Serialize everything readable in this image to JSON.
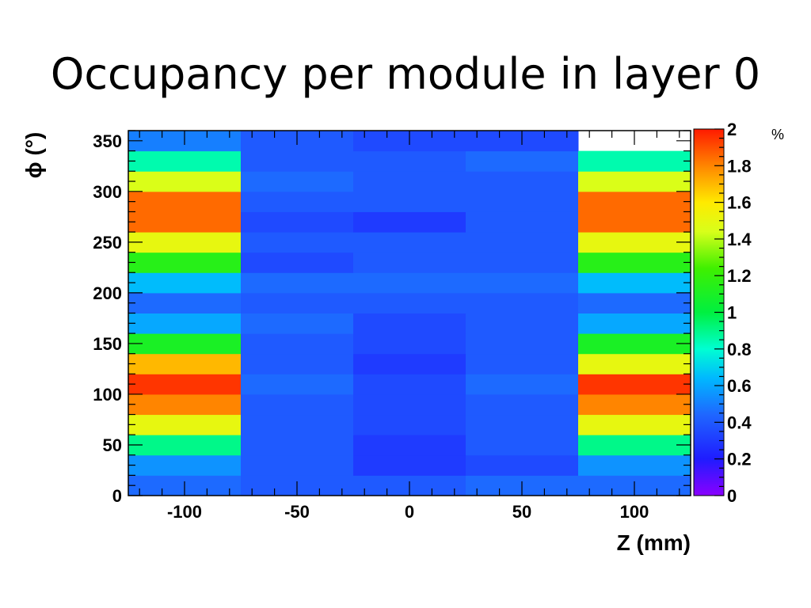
{
  "slide": {
    "title": "Occupancy per module in layer 0"
  },
  "chart_data": {
    "type": "heatmap",
    "title": "Occupancy per module in layer 0",
    "xlabel": "Z (mm)",
    "ylabel": "ϕ (°)",
    "xlim": [
      -125,
      125
    ],
    "ylim": [
      0,
      360
    ],
    "x_edges": [
      -125,
      -75,
      -25,
      25,
      75,
      125
    ],
    "y_edges": [
      0,
      20,
      40,
      60,
      80,
      100,
      120,
      140,
      160,
      180,
      200,
      220,
      240,
      260,
      280,
      300,
      320,
      340,
      360
    ],
    "x_ticks": [
      -100,
      -50,
      0,
      50,
      100
    ],
    "y_ticks": [
      0,
      50,
      100,
      150,
      200,
      250,
      300,
      350
    ],
    "colorbar": {
      "min": 0,
      "max": 2,
      "unit": "%",
      "ticks": [
        "0",
        "0.2",
        "0.4",
        "0.6",
        "0.8",
        "1",
        "1.2",
        "1.4",
        "1.6",
        "1.8",
        "2"
      ]
    },
    "values": [
      [
        0.45,
        0.4,
        0.4,
        0.45,
        0.45
      ],
      [
        0.55,
        0.4,
        0.3,
        0.35,
        0.55
      ],
      [
        0.9,
        0.4,
        0.3,
        0.4,
        0.9
      ],
      [
        1.5,
        0.4,
        0.35,
        0.4,
        1.5
      ],
      [
        1.8,
        0.4,
        0.35,
        0.4,
        1.8
      ],
      [
        1.95,
        0.45,
        0.35,
        0.45,
        1.95
      ],
      [
        1.7,
        0.4,
        0.3,
        0.4,
        1.5
      ],
      [
        1.1,
        0.4,
        0.35,
        0.4,
        1.1
      ],
      [
        0.6,
        0.45,
        0.35,
        0.4,
        0.6
      ],
      [
        0.45,
        0.4,
        0.4,
        0.4,
        0.45
      ],
      [
        0.65,
        0.45,
        0.45,
        0.45,
        0.65
      ],
      [
        1.15,
        0.35,
        0.4,
        0.4,
        1.15
      ],
      [
        1.5,
        0.4,
        0.4,
        0.4,
        1.5
      ],
      [
        1.85,
        0.35,
        0.3,
        0.4,
        1.85
      ],
      [
        1.85,
        0.4,
        0.4,
        0.4,
        1.85
      ],
      [
        1.45,
        0.45,
        0.4,
        0.4,
        1.45
      ],
      [
        0.85,
        0.4,
        0.4,
        0.45,
        0.85
      ],
      [
        0.5,
        0.4,
        0.35,
        0.35,
        null
      ]
    ]
  }
}
